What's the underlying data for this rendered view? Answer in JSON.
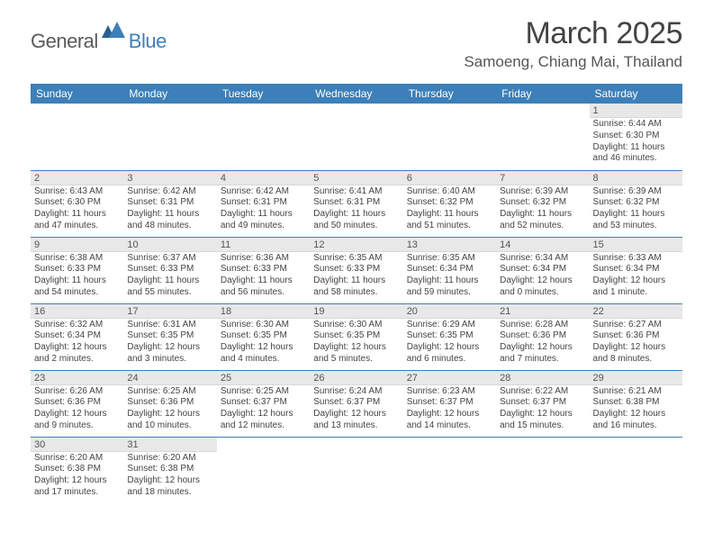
{
  "logo": {
    "general": "General",
    "blue": "Blue"
  },
  "title": "March 2025",
  "location": "Samoeng, Chiang Mai, Thailand",
  "colors": {
    "header_bg": "#3d7fb8",
    "header_text": "#ffffff",
    "daynum_bg": "#e8e8e8",
    "border": "#3d7fb8",
    "body_text": "#444444"
  },
  "daynames": [
    "Sunday",
    "Monday",
    "Tuesday",
    "Wednesday",
    "Thursday",
    "Friday",
    "Saturday"
  ],
  "weeks": [
    [
      null,
      null,
      null,
      null,
      null,
      null,
      {
        "n": "1",
        "sr": "6:44 AM",
        "ss": "6:30 PM",
        "dl": "11 hours and 46 minutes."
      }
    ],
    [
      {
        "n": "2",
        "sr": "6:43 AM",
        "ss": "6:30 PM",
        "dl": "11 hours and 47 minutes."
      },
      {
        "n": "3",
        "sr": "6:42 AM",
        "ss": "6:31 PM",
        "dl": "11 hours and 48 minutes."
      },
      {
        "n": "4",
        "sr": "6:42 AM",
        "ss": "6:31 PM",
        "dl": "11 hours and 49 minutes."
      },
      {
        "n": "5",
        "sr": "6:41 AM",
        "ss": "6:31 PM",
        "dl": "11 hours and 50 minutes."
      },
      {
        "n": "6",
        "sr": "6:40 AM",
        "ss": "6:32 PM",
        "dl": "11 hours and 51 minutes."
      },
      {
        "n": "7",
        "sr": "6:39 AM",
        "ss": "6:32 PM",
        "dl": "11 hours and 52 minutes."
      },
      {
        "n": "8",
        "sr": "6:39 AM",
        "ss": "6:32 PM",
        "dl": "11 hours and 53 minutes."
      }
    ],
    [
      {
        "n": "9",
        "sr": "6:38 AM",
        "ss": "6:33 PM",
        "dl": "11 hours and 54 minutes."
      },
      {
        "n": "10",
        "sr": "6:37 AM",
        "ss": "6:33 PM",
        "dl": "11 hours and 55 minutes."
      },
      {
        "n": "11",
        "sr": "6:36 AM",
        "ss": "6:33 PM",
        "dl": "11 hours and 56 minutes."
      },
      {
        "n": "12",
        "sr": "6:35 AM",
        "ss": "6:33 PM",
        "dl": "11 hours and 58 minutes."
      },
      {
        "n": "13",
        "sr": "6:35 AM",
        "ss": "6:34 PM",
        "dl": "11 hours and 59 minutes."
      },
      {
        "n": "14",
        "sr": "6:34 AM",
        "ss": "6:34 PM",
        "dl": "12 hours and 0 minutes."
      },
      {
        "n": "15",
        "sr": "6:33 AM",
        "ss": "6:34 PM",
        "dl": "12 hours and 1 minute."
      }
    ],
    [
      {
        "n": "16",
        "sr": "6:32 AM",
        "ss": "6:34 PM",
        "dl": "12 hours and 2 minutes."
      },
      {
        "n": "17",
        "sr": "6:31 AM",
        "ss": "6:35 PM",
        "dl": "12 hours and 3 minutes."
      },
      {
        "n": "18",
        "sr": "6:30 AM",
        "ss": "6:35 PM",
        "dl": "12 hours and 4 minutes."
      },
      {
        "n": "19",
        "sr": "6:30 AM",
        "ss": "6:35 PM",
        "dl": "12 hours and 5 minutes."
      },
      {
        "n": "20",
        "sr": "6:29 AM",
        "ss": "6:35 PM",
        "dl": "12 hours and 6 minutes."
      },
      {
        "n": "21",
        "sr": "6:28 AM",
        "ss": "6:36 PM",
        "dl": "12 hours and 7 minutes."
      },
      {
        "n": "22",
        "sr": "6:27 AM",
        "ss": "6:36 PM",
        "dl": "12 hours and 8 minutes."
      }
    ],
    [
      {
        "n": "23",
        "sr": "6:26 AM",
        "ss": "6:36 PM",
        "dl": "12 hours and 9 minutes."
      },
      {
        "n": "24",
        "sr": "6:25 AM",
        "ss": "6:36 PM",
        "dl": "12 hours and 10 minutes."
      },
      {
        "n": "25",
        "sr": "6:25 AM",
        "ss": "6:37 PM",
        "dl": "12 hours and 12 minutes."
      },
      {
        "n": "26",
        "sr": "6:24 AM",
        "ss": "6:37 PM",
        "dl": "12 hours and 13 minutes."
      },
      {
        "n": "27",
        "sr": "6:23 AM",
        "ss": "6:37 PM",
        "dl": "12 hours and 14 minutes."
      },
      {
        "n": "28",
        "sr": "6:22 AM",
        "ss": "6:37 PM",
        "dl": "12 hours and 15 minutes."
      },
      {
        "n": "29",
        "sr": "6:21 AM",
        "ss": "6:38 PM",
        "dl": "12 hours and 16 minutes."
      }
    ],
    [
      {
        "n": "30",
        "sr": "6:20 AM",
        "ss": "6:38 PM",
        "dl": "12 hours and 17 minutes."
      },
      {
        "n": "31",
        "sr": "6:20 AM",
        "ss": "6:38 PM",
        "dl": "12 hours and 18 minutes."
      },
      null,
      null,
      null,
      null,
      null
    ]
  ],
  "labels": {
    "sunrise": "Sunrise: ",
    "sunset": "Sunset: ",
    "daylight": "Daylight: "
  }
}
